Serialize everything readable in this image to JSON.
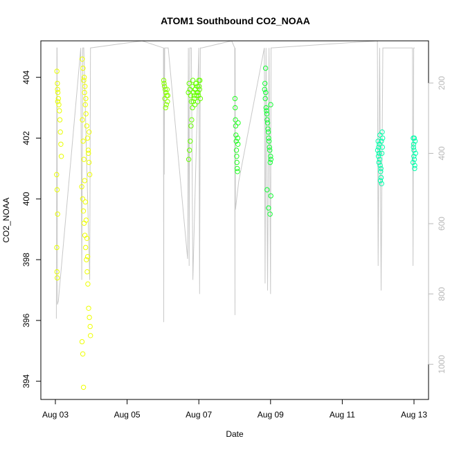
{
  "chart_data": {
    "type": "scatter",
    "title": "ATOM1 Southbound CO2_NOAA",
    "xlabel": "Date",
    "ylabel": "CO2_NOAA",
    "xlim": [
      "2016-08-03",
      "2016-08-13"
    ],
    "ylim": [
      393.4,
      405.2
    ],
    "x_ticks": [
      {
        "date": "2016-08-03",
        "label": "Aug 03"
      },
      {
        "date": "2016-08-05",
        "label": "Aug 05"
      },
      {
        "date": "2016-08-07",
        "label": "Aug 07"
      },
      {
        "date": "2016-08-09",
        "label": "Aug 09"
      },
      {
        "date": "2016-08-11",
        "label": "Aug 11"
      },
      {
        "date": "2016-08-13",
        "label": "Aug 13"
      }
    ],
    "y_ticks": [
      394,
      396,
      398,
      400,
      402,
      404
    ],
    "secondary_axis": {
      "label": "",
      "reversed": true,
      "range": [
        80,
        1100
      ],
      "ticks": [
        200,
        400,
        600,
        800,
        1000
      ],
      "color": "#b8b8b8"
    },
    "grid": false,
    "marker": "open-circle",
    "colors": {
      "yellow": "#ffff00",
      "yellow_green": "#ccff00",
      "light_green": "#66ff00",
      "green": "#00ff40",
      "cyan_green": "#00ffb0",
      "track": "#c8c8c8"
    },
    "series": [
      {
        "color": "#e8ff00",
        "x": [
          "2016-08-03T01:00",
          "2016-08-03T01:20",
          "2016-08-03T01:40",
          "2016-08-03T02:00",
          "2016-08-03T02:20",
          "2016-08-03T02:40",
          "2016-08-03T03:00",
          "2016-08-03T03:20",
          "2016-08-03T03:40",
          "2016-08-03T04:00",
          "2016-08-03T00:50",
          "2016-08-03T01:10",
          "2016-08-03T01:30",
          "2016-08-03T00:55",
          "2016-08-03T01:05",
          "2016-08-03T01:15",
          "2016-08-03T01:25",
          "2016-08-03T01:35"
        ],
        "y": [
          404.2,
          403.8,
          403.5,
          403.3,
          403.1,
          402.9,
          402.6,
          402.2,
          401.8,
          401.4,
          400.8,
          400.3,
          399.5,
          398.4,
          397.6,
          397.4,
          403.6,
          403.2
        ]
      },
      {
        "color": "#eeff00",
        "x": [
          "2016-08-03T18:00",
          "2016-08-03T18:30",
          "2016-08-03T19:00",
          "2016-08-03T19:30",
          "2016-08-03T20:00",
          "2016-08-03T20:30",
          "2016-08-03T21:00",
          "2016-08-03T21:30",
          "2016-08-03T22:00",
          "2016-08-03T22:30",
          "2016-08-03T23:00",
          "2016-08-03T17:40",
          "2016-08-03T18:15",
          "2016-08-03T18:45",
          "2016-08-03T19:15",
          "2016-08-03T19:45",
          "2016-08-03T20:15",
          "2016-08-03T20:45",
          "2016-08-03T21:15",
          "2016-08-03T21:45",
          "2016-08-03T22:15",
          "2016-08-03T22:45",
          "2016-08-03T23:15",
          "2016-08-03T23:30",
          "2016-08-03T17:50",
          "2016-08-03T18:20",
          "2016-08-03T18:50",
          "2016-08-03T19:20",
          "2016-08-03T19:50",
          "2016-08-03T20:20",
          "2016-08-03T18:05",
          "2016-08-03T18:35",
          "2016-08-03T19:05",
          "2016-08-03T19:35",
          "2016-08-03T20:05",
          "2016-08-03T20:35",
          "2016-08-03T21:05",
          "2016-08-03T21:35",
          "2016-08-03T22:05",
          "2016-08-03T22:35"
        ],
        "y": [
          404.6,
          404.3,
          403.9,
          403.5,
          403.1,
          402.8,
          402.4,
          402.0,
          401.6,
          401.2,
          400.8,
          400.4,
          400.0,
          399.6,
          399.2,
          398.8,
          398.4,
          398.0,
          397.6,
          397.2,
          396.4,
          396.1,
          395.8,
          395.5,
          395.3,
          394.9,
          393.8,
          404.0,
          403.7,
          403.3,
          402.6,
          401.9,
          401.3,
          400.6,
          399.9,
          399.3,
          398.7,
          398.1,
          401.5,
          402.2
        ]
      },
      {
        "color": "#88ff00",
        "x": [
          "2016-08-06T00:30",
          "2016-08-06T01:00",
          "2016-08-06T01:30",
          "2016-08-06T02:00",
          "2016-08-06T02:30",
          "2016-08-06T03:00",
          "2016-08-06T00:45",
          "2016-08-06T01:15",
          "2016-08-06T01:45",
          "2016-08-06T02:15",
          "2016-08-06T02:45",
          "2016-08-06T03:15"
        ],
        "y": [
          403.9,
          403.7,
          403.6,
          403.5,
          403.4,
          403.2,
          403.8,
          403.3,
          403.0,
          403.1,
          403.6,
          403.4
        ]
      },
      {
        "color": "#66ff00",
        "x": [
          "2016-08-06T17:00",
          "2016-08-06T17:30",
          "2016-08-06T18:00",
          "2016-08-06T18:30",
          "2016-08-06T19:00",
          "2016-08-06T19:30",
          "2016-08-06T20:00",
          "2016-08-06T20:30",
          "2016-08-06T21:00",
          "2016-08-06T21:30",
          "2016-08-06T22:00",
          "2016-08-06T22:30",
          "2016-08-06T23:00",
          "2016-08-06T23:30",
          "2016-08-07T00:00",
          "2016-08-07T00:30",
          "2016-08-07T01:00",
          "2016-08-06T17:15",
          "2016-08-06T17:45",
          "2016-08-06T18:15",
          "2016-08-06T18:45",
          "2016-08-06T19:15",
          "2016-08-06T19:45",
          "2016-08-06T20:15",
          "2016-08-06T20:45",
          "2016-08-06T21:15",
          "2016-08-06T21:45",
          "2016-08-06T22:15",
          "2016-08-06T22:45",
          "2016-08-06T23:15",
          "2016-08-06T23:45",
          "2016-08-07T00:15",
          "2016-08-07T00:45"
        ],
        "y": [
          403.5,
          403.8,
          403.6,
          403.4,
          403.2,
          403.7,
          403.9,
          403.5,
          403.3,
          403.6,
          403.8,
          403.4,
          403.7,
          403.5,
          403.9,
          403.6,
          403.3,
          401.3,
          401.6,
          401.9,
          402.4,
          402.6,
          403.0,
          403.2,
          403.4,
          403.1,
          403.6,
          403.8,
          403.5,
          403.2,
          403.4,
          403.7,
          403.9
        ]
      },
      {
        "color": "#22ff22",
        "x": [
          "2016-08-08T00:10",
          "2016-08-08T00:20",
          "2016-08-08T00:30",
          "2016-08-08T00:40",
          "2016-08-08T00:50",
          "2016-08-08T01:00",
          "2016-08-08T01:10",
          "2016-08-08T01:20",
          "2016-08-08T01:30",
          "2016-08-08T01:40",
          "2016-08-08T01:50",
          "2016-08-08T02:00",
          "2016-08-08T02:10",
          "2016-08-08T02:20"
        ],
        "y": [
          403.3,
          403.0,
          402.6,
          402.4,
          402.1,
          401.9,
          401.6,
          401.4,
          401.2,
          401.0,
          400.9,
          402.0,
          401.8,
          402.5
        ]
      },
      {
        "color": "#11ff33",
        "x": [
          "2016-08-08T20:00",
          "2016-08-08T20:30",
          "2016-08-08T21:00",
          "2016-08-08T21:30",
          "2016-08-08T22:00",
          "2016-08-08T22:30",
          "2016-08-08T23:00",
          "2016-08-08T23:30",
          "2016-08-09T00:00",
          "2016-08-09T00:15",
          "2016-08-08T20:15",
          "2016-08-08T20:45",
          "2016-08-08T21:15",
          "2016-08-08T21:45",
          "2016-08-08T22:15",
          "2016-08-08T22:45",
          "2016-08-08T23:15",
          "2016-08-08T23:45",
          "2016-08-08T20:40",
          "2016-08-08T21:40",
          "2016-08-08T22:40",
          "2016-08-08T23:40",
          "2016-08-09T00:10",
          "2016-08-09T00:05"
        ],
        "y": [
          403.6,
          403.3,
          403.0,
          402.8,
          402.5,
          402.2,
          401.9,
          401.6,
          401.4,
          401.3,
          403.8,
          403.5,
          402.9,
          402.6,
          402.3,
          402.0,
          401.7,
          401.2,
          404.3,
          400.3,
          399.7,
          399.5,
          400.1,
          403.1
        ]
      },
      {
        "color": "#00ffaa",
        "x": [
          "2016-08-12T00:00",
          "2016-08-12T00:20",
          "2016-08-12T00:40",
          "2016-08-12T01:00",
          "2016-08-12T01:20",
          "2016-08-12T01:40",
          "2016-08-12T02:00",
          "2016-08-12T02:20",
          "2016-08-12T02:40",
          "2016-08-12T03:00",
          "2016-08-11T23:40",
          "2016-08-12T00:10",
          "2016-08-12T00:30",
          "2016-08-12T00:50",
          "2016-08-12T01:10",
          "2016-08-12T01:30",
          "2016-08-12T01:50",
          "2016-08-12T02:10",
          "2016-08-12T02:30",
          "2016-08-12T02:50"
        ],
        "y": [
          401.9,
          401.7,
          401.5,
          401.3,
          401.1,
          400.9,
          400.7,
          400.5,
          402.2,
          402.0,
          401.6,
          401.4,
          401.2,
          401.8,
          402.1,
          400.6,
          401.0,
          401.9,
          401.5,
          401.7
        ]
      },
      {
        "color": "#00ffaa",
        "x": [
          "2016-08-12T23:30",
          "2016-08-12T23:45",
          "2016-08-13T00:00",
          "2016-08-13T00:15",
          "2016-08-13T00:30",
          "2016-08-13T00:45",
          "2016-08-13T01:00",
          "2016-08-12T23:20",
          "2016-08-12T23:40",
          "2016-08-12T23:55",
          "2016-08-13T00:10",
          "2016-08-13T00:25"
        ],
        "y": [
          402.0,
          401.8,
          401.6,
          401.3,
          401.1,
          401.9,
          401.5,
          401.2,
          401.7,
          401.4,
          402.0,
          401.0
        ]
      }
    ],
    "flight_track": {
      "color": "#c8c8c8",
      "x": [
        "2016-08-03T00:40",
        "2016-08-03T01:00",
        "2016-08-03T01:10",
        "2016-08-03T01:20",
        "2016-08-03T02:00",
        "2016-08-03T17:00",
        "2016-08-03T17:40",
        "2016-08-03T18:20",
        "2016-08-03T19:00",
        "2016-08-03T23:00",
        "2016-08-03T23:30",
        "2016-08-05T10:00",
        "2016-08-05T10:00",
        "2016-08-06T00:20",
        "2016-08-06T00:30",
        "2016-08-06T00:40",
        "2016-08-06T00:50",
        "2016-08-06T01:10",
        "2016-08-06T03:30",
        "2016-08-06T16:30",
        "2016-08-06T17:00",
        "2016-08-06T17:30",
        "2016-08-06T18:00",
        "2016-08-06T19:00",
        "2016-08-06T20:00",
        "2016-08-07T00:00",
        "2016-08-07T00:30",
        "2016-08-07T01:00",
        "2016-08-07T01:30",
        "2016-08-07T01:50",
        "2016-08-07T22:00",
        "2016-08-08T00:00",
        "2016-08-08T00:10",
        "2016-08-08T00:20",
        "2016-08-08T00:30",
        "2016-08-08T02:40",
        "2016-08-08T19:50",
        "2016-08-08T20:20",
        "2016-08-08T21:00",
        "2016-08-08T22:00",
        "2016-08-08T23:00",
        "2016-08-09T00:00",
        "2016-08-09T00:20",
        "2016-08-11T23:30",
        "2016-08-12T00:00",
        "2016-08-12T01:00",
        "2016-08-12T02:00",
        "2016-08-12T03:10",
        "2016-08-12T23:00",
        "2016-08-12T23:20",
        "2016-08-12T23:50",
        "2016-08-13T00:30"
      ],
      "pressure": [
        870,
        100,
        100,
        830,
        820,
        100,
        760,
        100,
        100,
        760,
        100,
        80,
        80,
        100,
        880,
        100,
        460,
        100,
        100,
        700,
        100,
        720,
        100,
        100,
        760,
        100,
        800,
        100,
        100,
        100,
        80,
        100,
        860,
        100,
        560,
        480,
        100,
        770,
        100,
        790,
        100,
        800,
        100,
        80,
        720,
        100,
        790,
        100,
        100,
        720,
        100,
        100
      ]
    }
  }
}
